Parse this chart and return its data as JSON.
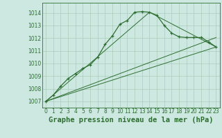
{
  "background_color": "#cce8e0",
  "grid_color": "#aaccbb",
  "line_color": "#2d6e30",
  "xlabel": "Graphe pression niveau de la mer (hPa)",
  "xlabel_fontsize": 7.5,
  "tick_fontsize": 5.5,
  "ylim": [
    1006.5,
    1014.8
  ],
  "xlim": [
    -0.5,
    23.5
  ],
  "yticks": [
    1007,
    1008,
    1009,
    1010,
    1011,
    1012,
    1013,
    1014
  ],
  "xticks": [
    0,
    1,
    2,
    3,
    4,
    5,
    6,
    7,
    8,
    9,
    10,
    11,
    12,
    13,
    14,
    15,
    16,
    17,
    18,
    19,
    20,
    21,
    22,
    23
  ],
  "curve_x": [
    0,
    1,
    2,
    3,
    4,
    5,
    6,
    7,
    8,
    9,
    10,
    11,
    12,
    13,
    14,
    15,
    16,
    17,
    18,
    19,
    20,
    21,
    22,
    23
  ],
  "curve_y": [
    1007.0,
    1007.5,
    1008.2,
    1008.8,
    1009.2,
    1009.6,
    1009.9,
    1010.5,
    1011.5,
    1012.2,
    1013.1,
    1013.4,
    1014.05,
    1014.1,
    1014.05,
    1013.8,
    1013.0,
    1012.4,
    1012.1,
    1012.05,
    1012.05,
    1012.05,
    1011.7,
    1011.3
  ],
  "line1_x": [
    0,
    23
  ],
  "line1_y": [
    1007.0,
    1011.3
  ],
  "line2_x": [
    0,
    14
  ],
  "line2_y": [
    1007.0,
    1014.05
  ],
  "line3_x": [
    14,
    23
  ],
  "line3_y": [
    1014.05,
    1011.3
  ],
  "line4_x": [
    0,
    23
  ],
  "line4_y": [
    1007.0,
    1012.05
  ]
}
